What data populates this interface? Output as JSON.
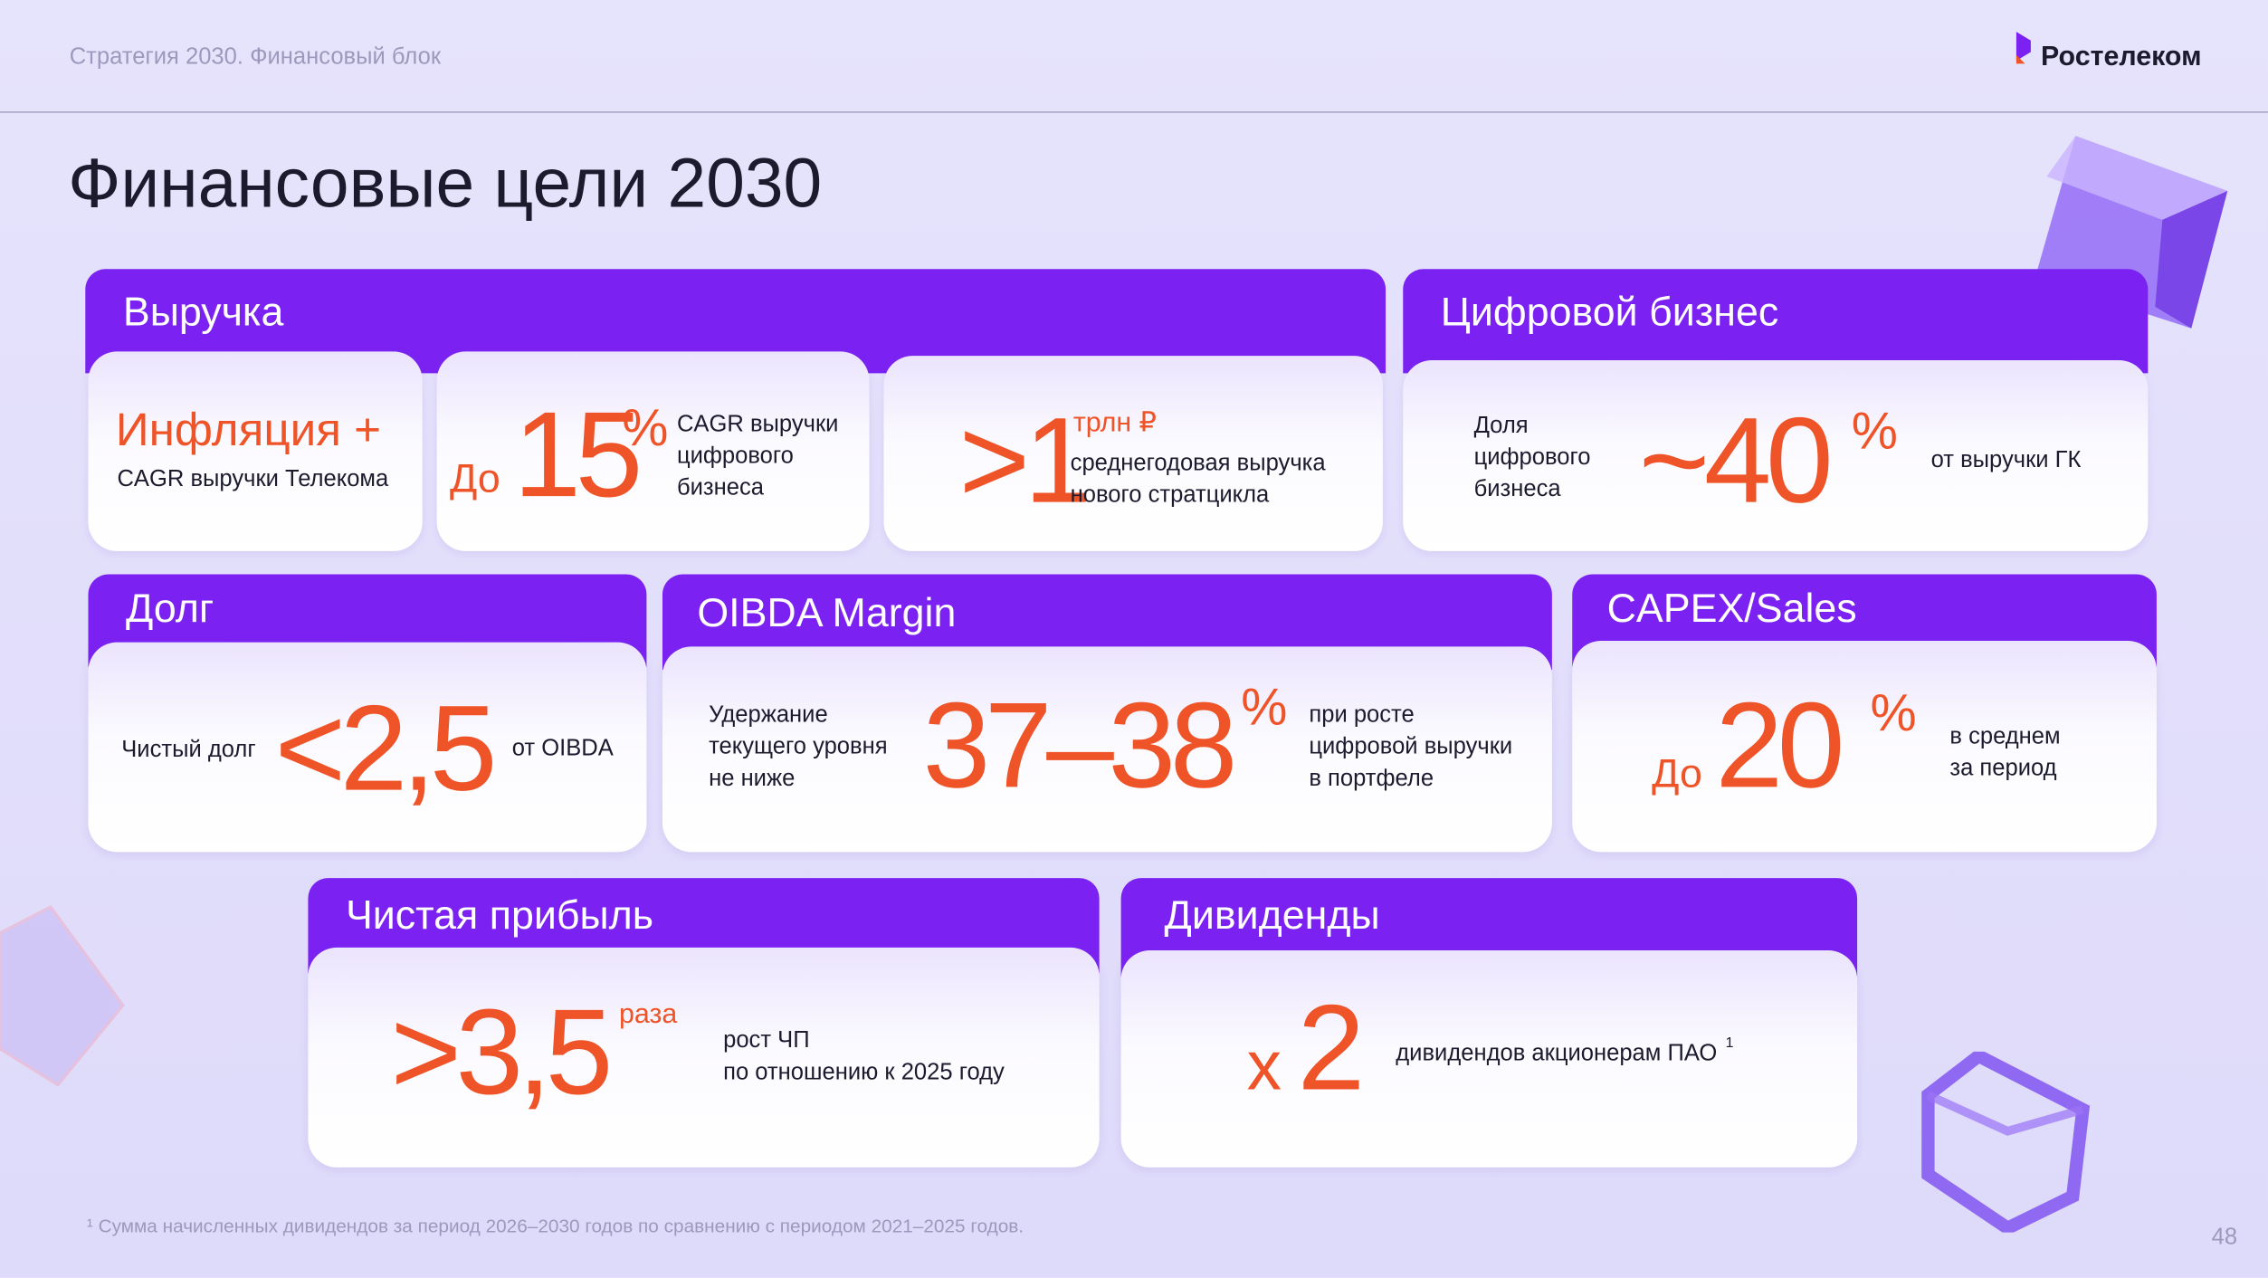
{
  "header": {
    "section": "Стратегия 2030. Финансовый блок",
    "logo": "Ростелеком"
  },
  "title": "Финансовые цели 2030",
  "revenue": {
    "title": "Выручка",
    "inflation": {
      "value": "Инфляция +",
      "caption": "CAGR выручки Телекома"
    },
    "digital_cagr": {
      "prefix": "До",
      "value": "15",
      "unit": "%",
      "caption": "CAGR выручки\nцифрового\nбизнеса"
    },
    "new_cycle": {
      "value": ">1",
      "unit": "трлн ₽",
      "caption": "среднегодовая выручка\nнового стратцикла"
    }
  },
  "digital": {
    "title": "Цифровой бизнес",
    "label": "Доля\nцифрового\nбизнеса",
    "value": "~40",
    "unit": "%",
    "caption": "от выручки ГК"
  },
  "debt": {
    "title": "Долг",
    "label": "Чистый долг",
    "value": "<2,5",
    "caption": "от OIBDA"
  },
  "oibda": {
    "title": "OIBDA Margin",
    "label": "Удержание\nтекущего уровня\nне ниже",
    "value": "37–38",
    "unit": "%",
    "caption": "при росте\nцифровой выручки\nв портфеле"
  },
  "capex": {
    "title": "CAPEX/Sales",
    "prefix": "До",
    "value": "20",
    "unit": "%",
    "caption": "в среднем\nза период"
  },
  "net_profit": {
    "title": "Чистая прибыль",
    "value": ">3,5",
    "unit": "раза",
    "caption": "рост ЧП\nпо отношению к 2025 году"
  },
  "dividends": {
    "title": "Дивиденды",
    "prefix": "x",
    "value": "2",
    "caption": "дивидендов акционерам ПАО",
    "footnote_mark": "1"
  },
  "footnote": "¹ Сумма начисленных дивидендов за период 2026–2030 годов по сравнению с периодом 2021–2025 годов.",
  "page_number": "48"
}
